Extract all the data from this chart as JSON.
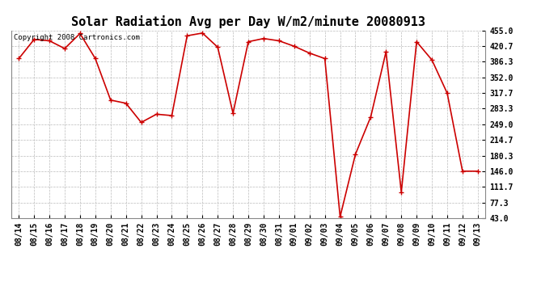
{
  "title": "Solar Radiation Avg per Day W/m2/minute 20080913",
  "copyright_text": "Copyright 2008 Cartronics.com",
  "labels": [
    "08/14",
    "08/15",
    "08/16",
    "08/17",
    "08/18",
    "08/19",
    "08/20",
    "08/21",
    "08/22",
    "08/23",
    "08/24",
    "08/25",
    "08/26",
    "08/27",
    "08/28",
    "08/29",
    "08/30",
    "08/31",
    "09/01",
    "09/02",
    "09/03",
    "09/04",
    "09/05",
    "09/06",
    "09/07",
    "09/08",
    "09/09",
    "09/10",
    "09/11",
    "09/12",
    "09/13"
  ],
  "values": [
    393,
    435,
    432,
    415,
    448,
    393,
    302,
    295,
    253,
    271,
    268,
    443,
    449,
    418,
    273,
    430,
    437,
    432,
    420,
    405,
    393,
    46,
    183,
    265,
    408,
    100,
    430,
    390,
    317,
    146,
    146
  ],
  "line_color": "#cc0000",
  "marker_color": "#cc0000",
  "bg_color": "#ffffff",
  "grid_color": "#bbbbbb",
  "y_ticks": [
    43.0,
    77.3,
    111.7,
    146.0,
    180.3,
    214.7,
    249.0,
    283.3,
    317.7,
    352.0,
    386.3,
    420.7,
    455.0
  ],
  "ylim_min": 43.0,
  "ylim_max": 455.0,
  "title_fontsize": 11,
  "tick_fontsize": 7,
  "copyright_fontsize": 6.5
}
